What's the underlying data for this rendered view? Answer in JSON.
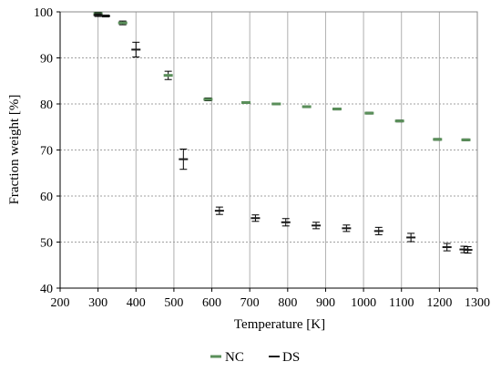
{
  "chart_data": {
    "type": "scatter",
    "xlabel": "Temperature [K]",
    "ylabel": "Fraction weight [%]",
    "xlim": [
      200,
      1300
    ],
    "ylim": [
      40,
      100
    ],
    "xticks": [
      200,
      300,
      400,
      500,
      600,
      700,
      800,
      900,
      1000,
      1100,
      1200,
      1300
    ],
    "yticks": [
      40,
      50,
      60,
      70,
      80,
      90,
      100
    ],
    "x_tick_labels": [
      "200",
      "300",
      "400",
      "500",
      "600",
      "700",
      "800",
      "900",
      "1000",
      "1100",
      "1200",
      "1300"
    ],
    "y_tick_labels": [
      "40",
      "50",
      "60",
      "70",
      "80",
      "90",
      "100"
    ],
    "grid": {
      "vertical": "solid",
      "horizontal": "dashed"
    },
    "legend_position": "bottom-center",
    "series": [
      {
        "name": "NC",
        "color": "#5a8f5a",
        "marker": "horizontal-dash",
        "points": [
          {
            "x": 300,
            "y": 99.6,
            "err": 0.3
          },
          {
            "x": 365,
            "y": 97.6,
            "err": 0.4
          },
          {
            "x": 485,
            "y": 86.2,
            "err": 0.9
          },
          {
            "x": 590,
            "y": 81.0,
            "err": 0.3
          },
          {
            "x": 690,
            "y": 80.3,
            "err": 0.2
          },
          {
            "x": 770,
            "y": 80.0,
            "err": 0.2
          },
          {
            "x": 850,
            "y": 79.4,
            "err": 0.2
          },
          {
            "x": 930,
            "y": 78.9,
            "err": 0.2
          },
          {
            "x": 1015,
            "y": 78.0,
            "err": 0.2
          },
          {
            "x": 1095,
            "y": 76.3,
            "err": 0.2
          },
          {
            "x": 1195,
            "y": 72.3,
            "err": 0.2
          },
          {
            "x": 1270,
            "y": 72.2,
            "err": 0.2
          }
        ]
      },
      {
        "name": "DS",
        "color": "#1a1a1a",
        "marker": "horizontal-dash",
        "points": [
          {
            "x": 300,
            "y": 99.3,
            "err": 0.3
          },
          {
            "x": 320,
            "y": 99.1,
            "err": 0.2
          },
          {
            "x": 400,
            "y": 91.8,
            "err": 1.6
          },
          {
            "x": 525,
            "y": 68.0,
            "err": 2.2
          },
          {
            "x": 620,
            "y": 56.8,
            "err": 0.8
          },
          {
            "x": 715,
            "y": 55.2,
            "err": 0.7
          },
          {
            "x": 795,
            "y": 54.3,
            "err": 0.8
          },
          {
            "x": 875,
            "y": 53.6,
            "err": 0.7
          },
          {
            "x": 955,
            "y": 53.0,
            "err": 0.7
          },
          {
            "x": 1040,
            "y": 52.4,
            "err": 0.8
          },
          {
            "x": 1125,
            "y": 51.0,
            "err": 0.9
          },
          {
            "x": 1220,
            "y": 48.9,
            "err": 0.8
          },
          {
            "x": 1265,
            "y": 48.4,
            "err": 0.7
          },
          {
            "x": 1275,
            "y": 48.3,
            "err": 0.7
          }
        ]
      }
    ]
  }
}
